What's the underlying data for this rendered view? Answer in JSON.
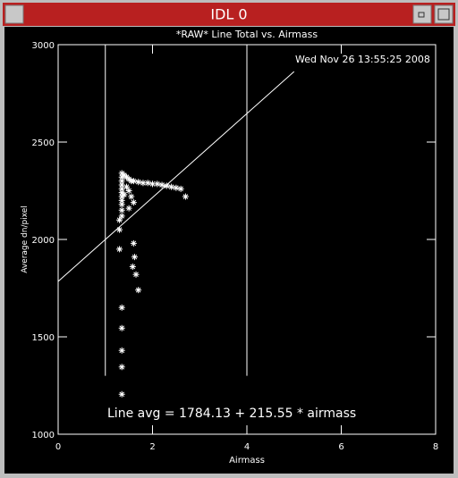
{
  "window": {
    "title": "IDL 0"
  },
  "chart_data": {
    "type": "scatter",
    "title": "*RAW* Line Total vs. Airmass",
    "xlabel": "Airmass",
    "ylabel": "Average dn/pixel",
    "timestamp": "Wed Nov 26 13:55:25 2008",
    "annotation": "Line avg = 1784.13 + 215.55 * airmass",
    "xlim": [
      0,
      8
    ],
    "ylim": [
      1000,
      3000
    ],
    "xticks": [
      0,
      2,
      4,
      6,
      8
    ],
    "yticks": [
      1000,
      1500,
      2000,
      2500,
      3000
    ],
    "color": "#ffffff",
    "x": [
      1.35,
      1.35,
      1.35,
      1.35,
      1.35,
      1.35,
      1.35,
      1.35,
      1.35,
      1.35,
      1.35,
      1.3,
      1.3,
      1.3,
      1.35,
      1.35,
      1.35,
      1.35,
      1.35,
      1.4,
      1.45,
      1.5,
      1.55,
      1.6,
      1.7,
      1.8,
      1.9,
      2.0,
      2.1,
      2.2,
      2.3,
      2.4,
      2.5,
      2.6,
      2.7,
      1.5,
      1.55,
      1.6,
      1.5,
      1.6,
      1.62,
      1.58,
      1.65,
      1.7,
      1.45,
      1.4
    ],
    "y": [
      2340,
      2320,
      2300,
      2280,
      2260,
      2240,
      2220,
      2200,
      2180,
      2150,
      2120,
      2100,
      2050,
      1950,
      1650,
      1545,
      1430,
      1345,
      1205,
      2330,
      2320,
      2310,
      2300,
      2300,
      2295,
      2290,
      2290,
      2285,
      2285,
      2280,
      2275,
      2270,
      2265,
      2260,
      2220,
      2250,
      2220,
      2190,
      2160,
      1980,
      1910,
      1860,
      1820,
      1740,
      2270,
      2230
    ],
    "vlines": [
      {
        "x": 1,
        "y": [
          1300,
          3000
        ]
      },
      {
        "x": 4,
        "y": [
          1300,
          3000
        ]
      }
    ],
    "fit": {
      "intercept": 1784.13,
      "slope": 215.55,
      "xrange": [
        0,
        5
      ]
    }
  }
}
